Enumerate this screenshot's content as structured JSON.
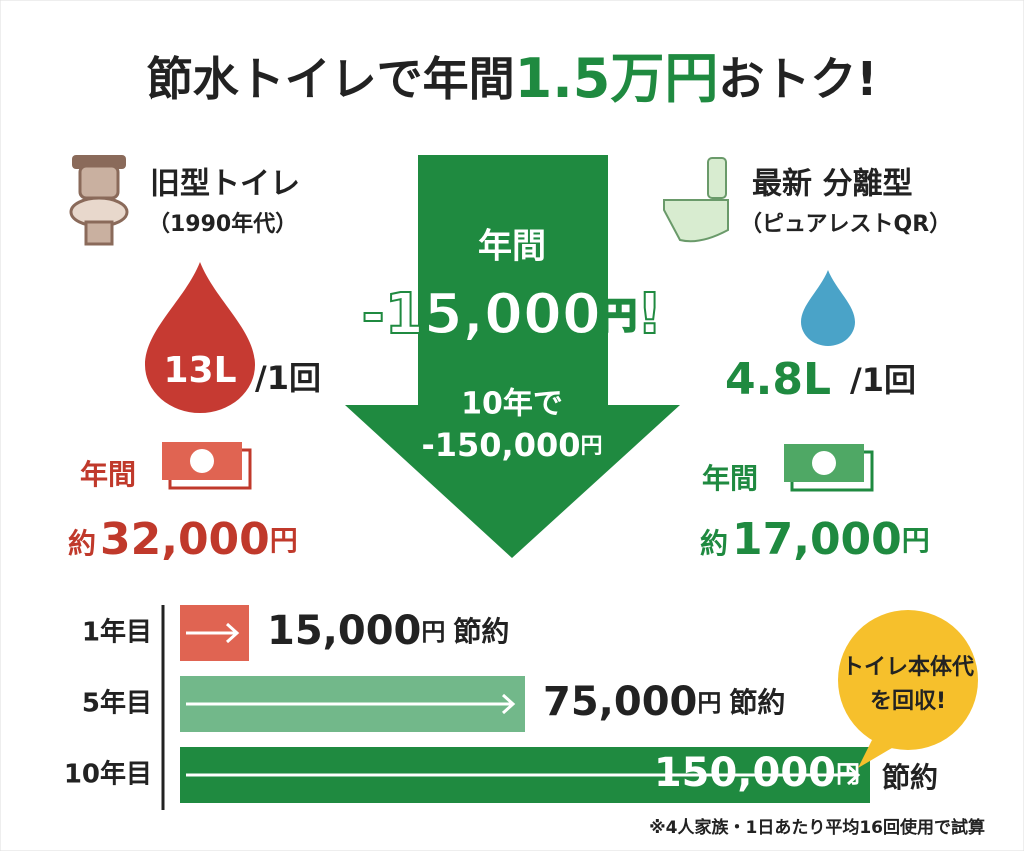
{
  "title": {
    "prefix": "節水トイレで年間",
    "highlight": "1.5万円",
    "suffix": "おトク!"
  },
  "old": {
    "name": "旧型トイレ",
    "era": "（1990年代）",
    "volume": "13L",
    "per": "/1回",
    "annual": "年間",
    "approx": "約",
    "cost": "32,000",
    "yen": "円"
  },
  "new": {
    "name": "最新 分離型",
    "model": "（ピュアレストQR）",
    "volume": "4.8L",
    "per": "/1回",
    "annual": "年間",
    "approx": "約",
    "cost": "17,000",
    "yen": "円"
  },
  "arrow": {
    "line1": "年間",
    "amount": "-15,000",
    "yen": "円",
    "exclaim": "!",
    "line2": "10年で",
    "amount10": "-150,000",
    "yen10": "円"
  },
  "savings": {
    "max": 150000,
    "rows": [
      {
        "label": "1年目",
        "value": 15000,
        "value_label": "15,000",
        "unit": "円",
        "suffix": "節約",
        "color": "#e06452"
      },
      {
        "label": "5年目",
        "value": 75000,
        "value_label": "75,000",
        "unit": "円",
        "suffix": "節約",
        "color": "#72b88a"
      },
      {
        "label": "10年目",
        "value": 150000,
        "value_label": "150,000",
        "unit": "円",
        "suffix": "節約",
        "color": "#1f8a40"
      }
    ]
  },
  "badge": {
    "line1": "トイレ本体代",
    "line2": "を回収!"
  },
  "footnote": "※4人家族・1日あたり平均16回使用で試算"
}
